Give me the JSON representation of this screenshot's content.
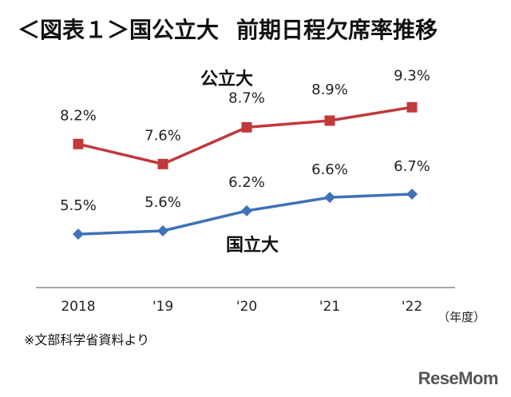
{
  "header": {
    "figure_label": "＜図表１＞国公立大",
    "title": "前期日程欠席率推移"
  },
  "note": "※文部科学省資料より",
  "logo": "ReseMom",
  "colors": {
    "public": "#c0393b",
    "national": "#3f72b8",
    "axis": "#888888"
  },
  "chart_data": {
    "type": "line",
    "categories": [
      "2018",
      "'19",
      "'20",
      "'21",
      "'22"
    ],
    "x_unit": "（年度）",
    "series": [
      {
        "name": "公立大",
        "values": [
          8.2,
          7.6,
          8.7,
          8.9,
          9.3
        ],
        "labels": [
          "8.2%",
          "7.6%",
          "8.7%",
          "8.9%",
          "9.3%"
        ],
        "marker": "square"
      },
      {
        "name": "国立大",
        "values": [
          5.5,
          5.6,
          6.2,
          6.6,
          6.7
        ],
        "labels": [
          "5.5%",
          "5.6%",
          "6.2%",
          "6.6%",
          "6.7%"
        ],
        "marker": "diamond"
      }
    ],
    "ylim": [
      4.5,
      10.0
    ],
    "grid": false,
    "legend": "inline labels"
  }
}
